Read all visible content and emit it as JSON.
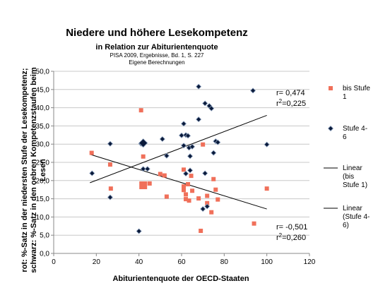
{
  "chart_data": {
    "type": "scatter",
    "title": "Niedere und höhere Lesekompetenz",
    "subtitle": "in Relation zur Abiturientenquote",
    "source_line1": "PISA 2009, Ergebnisse, Bd. 1, S. 227",
    "source_line2": "Eigene Berechnungen",
    "xlabel": "Abiturientenquote der OECD-Staaten",
    "ylabel_line1": "rot: %-Satz in der niedersten Stufe der Lesekompetenz;",
    "ylabel_line2": "schwarz: %-Satz in den oebren Kompetenzstaufen beim",
    "ylabel_line3": "Lesen",
    "xlim": [
      0,
      120
    ],
    "ylim": [
      0,
      50
    ],
    "x_ticks": [
      "0",
      "20",
      "40",
      "60",
      "80",
      "100",
      "120"
    ],
    "y_ticks": [
      "0,0",
      "5,0",
      "10,0",
      "15,0",
      "20,0",
      "25,0",
      "30,0",
      "35,0",
      "40,0",
      "45,0",
      "50,0"
    ],
    "grid": "horizontal",
    "legend_position": "right",
    "legend": [
      {
        "label_lines": [
          "bis Stufe",
          "1"
        ],
        "marker": "square",
        "color": "#f0705a"
      },
      {
        "label_lines": [
          "Stufe 4-",
          "6"
        ],
        "marker": "diamond",
        "color": "#0a1a3a"
      },
      {
        "label_lines": [
          "Linear",
          "(bis",
          "Stufe 1)"
        ],
        "marker": "line",
        "color": "#000000"
      },
      {
        "label_lines": [
          "Linear",
          "(Stufe 4-",
          "6)"
        ],
        "marker": "line",
        "color": "#000000"
      }
    ],
    "annotations": {
      "upper": {
        "r": "r= 0,474",
        "r2_prefix": "r",
        "r2_sup": "2",
        "r2_value": "=0,225"
      },
      "lower": {
        "r": "r= -0,501",
        "r2_prefix": "r",
        "r2_sup": "2",
        "r2_value": "=0,260"
      }
    },
    "series": [
      {
        "name": "bis Stufe 1",
        "marker": "square",
        "color": "#f0705a",
        "points": [
          [
            17.8,
            27.6
          ],
          [
            26.5,
            24.4
          ],
          [
            26.8,
            17.8
          ],
          [
            41,
            39.3
          ],
          [
            42,
            26.6
          ],
          [
            42,
            18.7
          ],
          [
            45,
            19.2
          ],
          [
            50,
            21.8
          ],
          [
            52,
            21.4
          ],
          [
            53,
            15.6
          ],
          [
            61,
            23
          ],
          [
            61,
            18.4
          ],
          [
            61,
            17.4
          ],
          [
            62,
            16.2
          ],
          [
            62,
            14.9
          ],
          [
            63,
            19
          ],
          [
            63.5,
            14.5
          ],
          [
            64.5,
            21.3
          ],
          [
            65,
            17.2
          ],
          [
            68,
            15.1
          ],
          [
            69,
            6.2
          ],
          [
            70,
            29.9
          ],
          [
            72,
            13.8
          ],
          [
            72,
            15.8
          ],
          [
            74,
            11.3
          ],
          [
            75,
            20.4
          ],
          [
            76,
            17.5
          ],
          [
            77,
            14.8
          ],
          [
            94,
            8.2
          ],
          [
            100,
            17.8
          ]
        ],
        "big_point": [
          42,
          18.7
        ]
      },
      {
        "name": "Stufe 4-6",
        "marker": "diamond",
        "color": "#0a1a3a",
        "points": [
          [
            18,
            22
          ],
          [
            26.5,
            30.1
          ],
          [
            26.5,
            15.4
          ],
          [
            40,
            6.1
          ],
          [
            41,
            30.1
          ],
          [
            42,
            30.3
          ],
          [
            42,
            23.2
          ],
          [
            44,
            23.2
          ],
          [
            51,
            31.4
          ],
          [
            53,
            26.8
          ],
          [
            60,
            32.4
          ],
          [
            61,
            35.6
          ],
          [
            61,
            29.6
          ],
          [
            62,
            32.5
          ],
          [
            62,
            21.9
          ],
          [
            63,
            32.3
          ],
          [
            63.5,
            29
          ],
          [
            64,
            26.7
          ],
          [
            64,
            22.8
          ],
          [
            65,
            29.3
          ],
          [
            68,
            45.8
          ],
          [
            68,
            36.8
          ],
          [
            70,
            12.2
          ],
          [
            71,
            41.2
          ],
          [
            71,
            22
          ],
          [
            72,
            12.9
          ],
          [
            73,
            40.5
          ],
          [
            74,
            39.8
          ],
          [
            75,
            27.6
          ],
          [
            76,
            30.8
          ],
          [
            77,
            30.5
          ],
          [
            93.5,
            44.7
          ],
          [
            100,
            29.9
          ]
        ],
        "big_point": [
          42,
          30.3
        ]
      }
    ],
    "trendlines": [
      {
        "name": "Linear (bis Stufe 1)",
        "from": [
          17,
          27.2
        ],
        "to": [
          100,
          12.2
        ]
      },
      {
        "name": "Linear (Stufe 4-6)",
        "from": [
          17,
          19.4
        ],
        "to": [
          100,
          37.9
        ]
      }
    ]
  }
}
